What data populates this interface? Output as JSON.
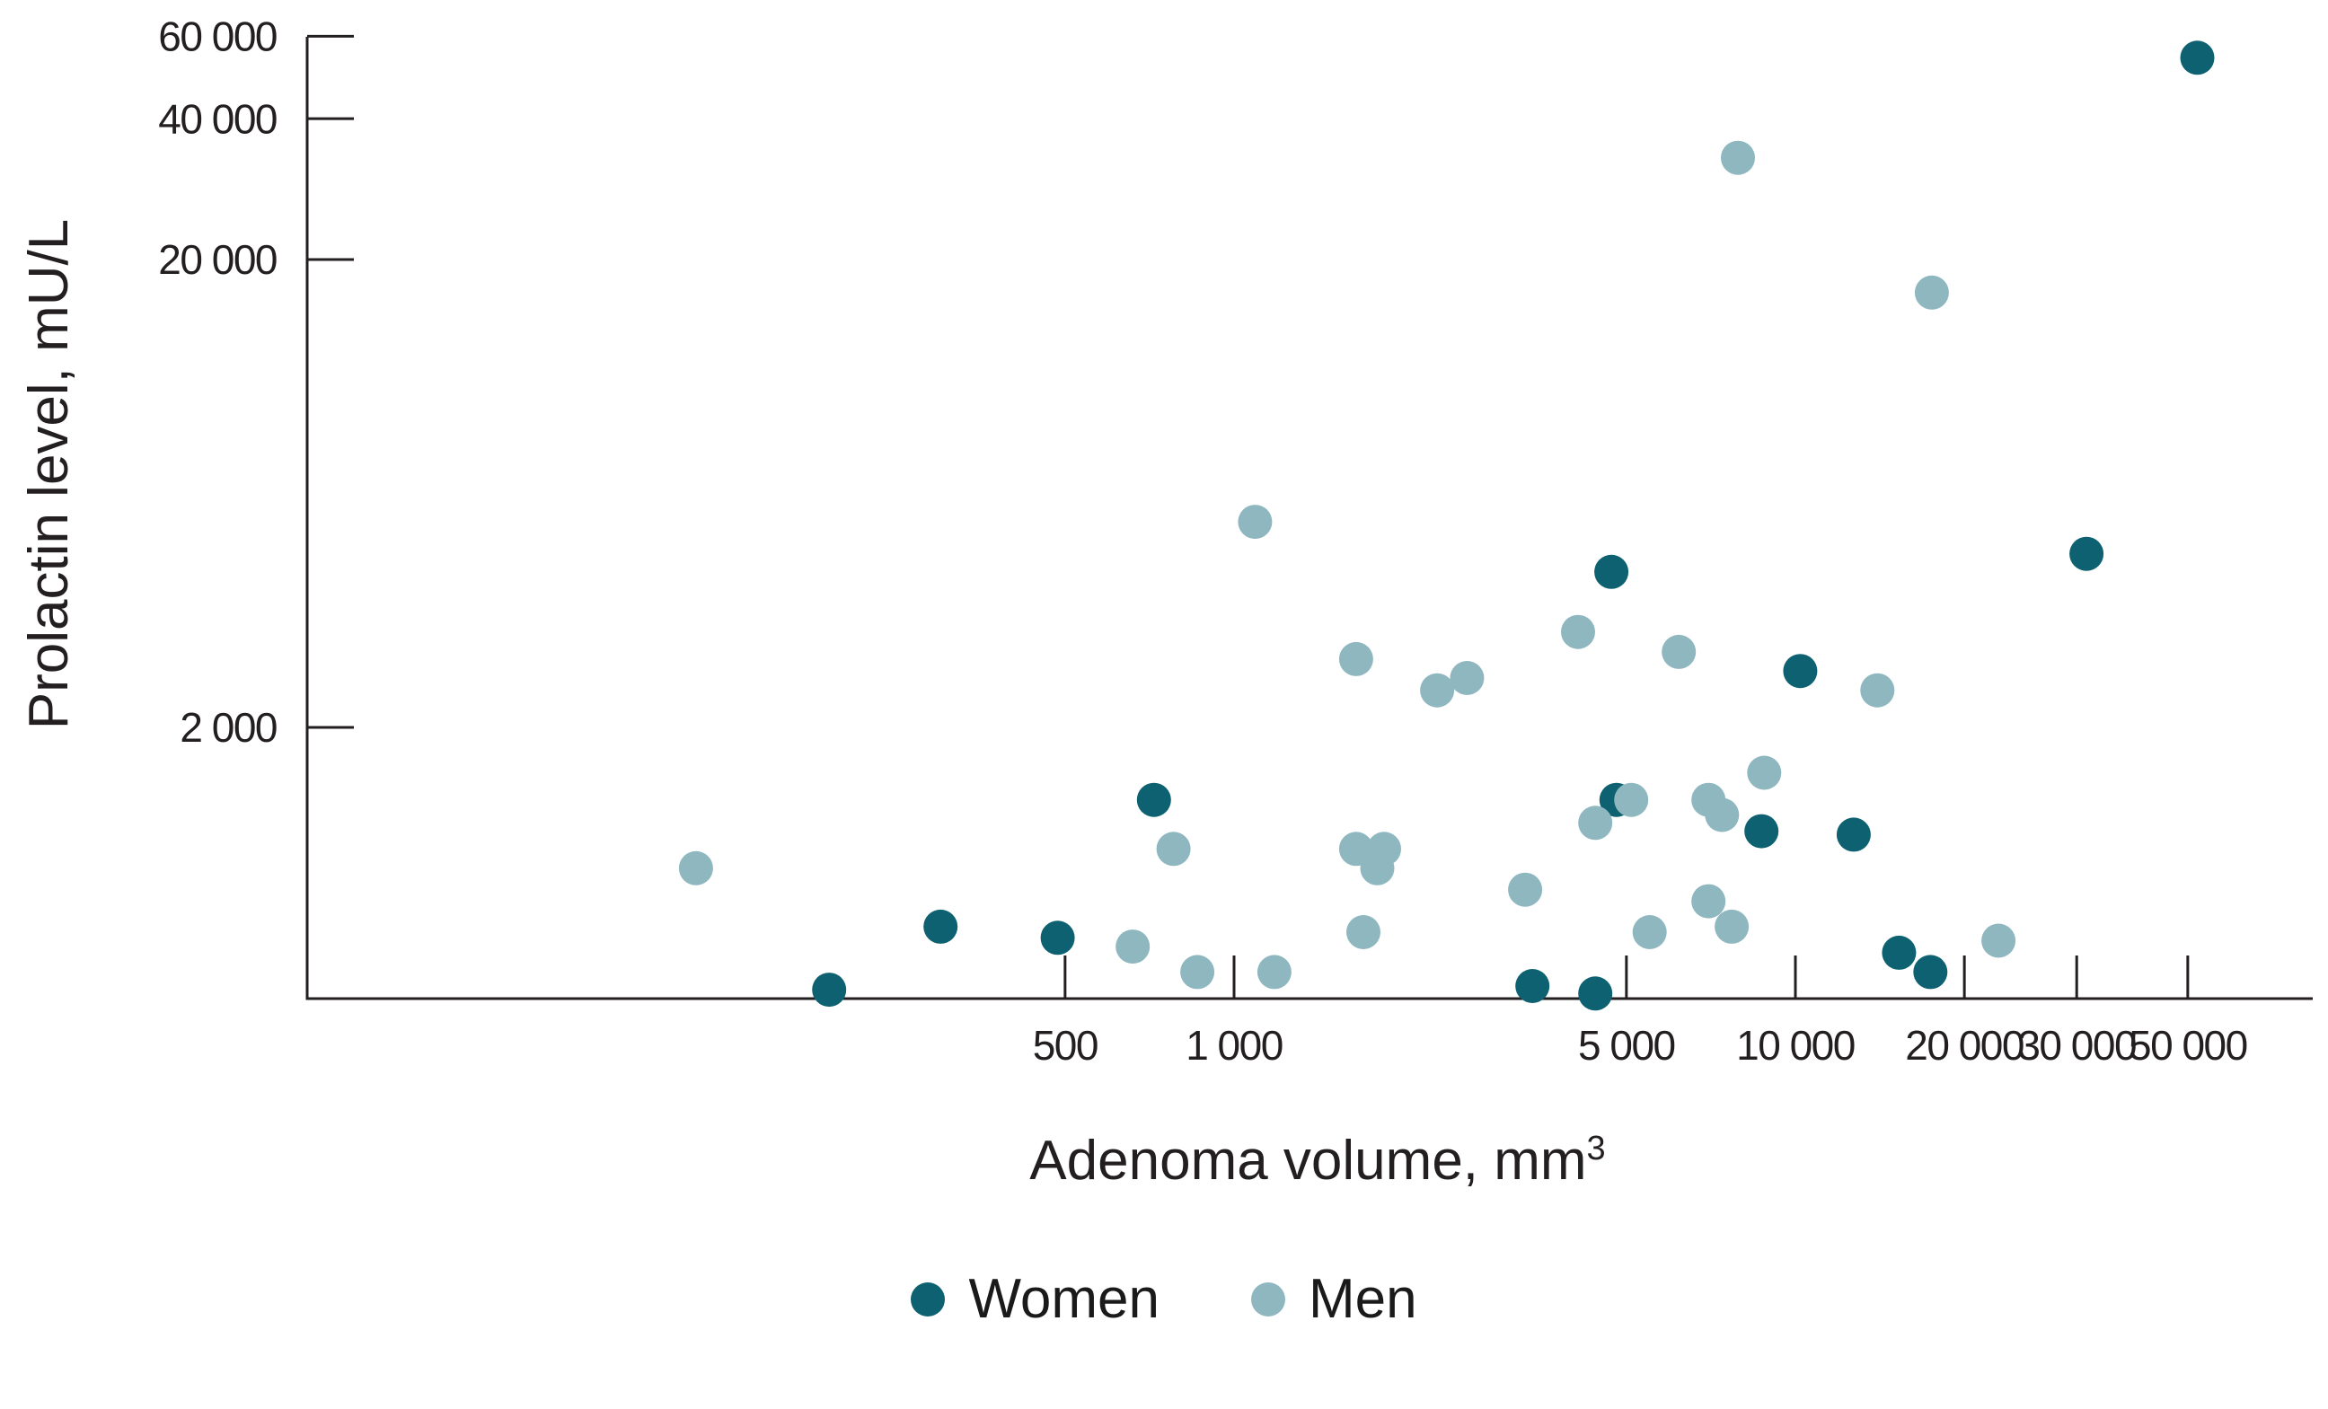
{
  "chart_data": {
    "type": "scatter",
    "title": "",
    "xlabel": "Adenoma volume, mm",
    "xlabel_superscript": "3",
    "ylabel": "Prolactin level, mU/L",
    "x_scale": "log",
    "y_scale": "log",
    "x_range": [
      150,
      85000
    ],
    "y_range": [
      500,
      62000
    ],
    "grid": "off",
    "legend_position": "bottom-center",
    "x_ticks": [
      {
        "value": 500,
        "label": "500"
      },
      {
        "value": 1000,
        "label": "1 000"
      },
      {
        "value": 5000,
        "label": "5 000"
      },
      {
        "value": 10000,
        "label": "10 000"
      },
      {
        "value": 20000,
        "label": "20 000"
      },
      {
        "value": 30000,
        "label": "30 000"
      },
      {
        "value": 50000,
        "label": "50 000"
      }
    ],
    "y_ticks": [
      {
        "value": 2000,
        "label": "2 000"
      },
      {
        "value": 20000,
        "label": "20 000"
      },
      {
        "value": 40000,
        "label": "40 000"
      },
      {
        "value": 60000,
        "label": "60 000"
      }
    ],
    "series": [
      {
        "name": "Women",
        "color": "#0d6170",
        "points": [
          [
            190,
            550
          ],
          [
            300,
            750
          ],
          [
            485,
            710
          ],
          [
            720,
            1400
          ],
          [
            3400,
            560
          ],
          [
            4400,
            540
          ],
          [
            4700,
            4300
          ],
          [
            4800,
            1400
          ],
          [
            8700,
            1200
          ],
          [
            10200,
            2640
          ],
          [
            12700,
            1180
          ],
          [
            15300,
            660
          ],
          [
            17400,
            600
          ],
          [
            33000,
            4700
          ],
          [
            52000,
            54000
          ]
        ]
      },
      {
        "name": "Men",
        "color": "#8fb7c0",
        "points": [
          [
            110,
            1000
          ],
          [
            660,
            680
          ],
          [
            780,
            1100
          ],
          [
            860,
            600
          ],
          [
            1090,
            5500
          ],
          [
            1180,
            600
          ],
          [
            1650,
            1100
          ],
          [
            1650,
            2800
          ],
          [
            1700,
            730
          ],
          [
            1800,
            1000
          ],
          [
            1850,
            1100
          ],
          [
            2300,
            2400
          ],
          [
            2600,
            2550
          ],
          [
            3300,
            900
          ],
          [
            4100,
            3200
          ],
          [
            4400,
            1250
          ],
          [
            5100,
            1400
          ],
          [
            5500,
            730
          ],
          [
            6200,
            2900
          ],
          [
            7000,
            850
          ],
          [
            7000,
            1400
          ],
          [
            7400,
            1300
          ],
          [
            7700,
            750
          ],
          [
            7900,
            33000
          ],
          [
            8800,
            1600
          ],
          [
            14000,
            2400
          ],
          [
            17500,
            17000
          ],
          [
            23000,
            700
          ]
        ]
      }
    ]
  }
}
